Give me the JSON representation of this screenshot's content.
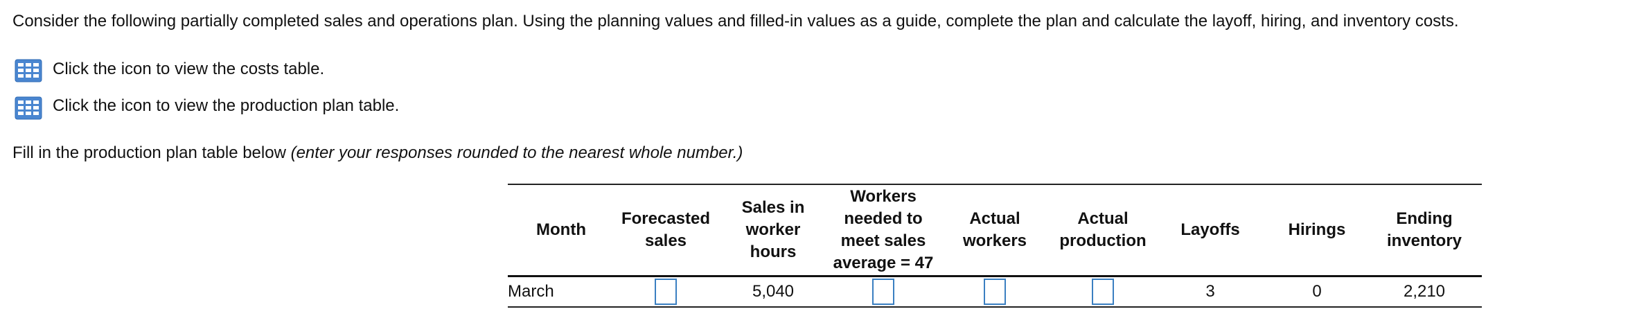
{
  "intro": "Consider the following partially completed sales and operations plan. Using the planning values and filled-in values as a guide, complete the plan and calculate the layoff, hiring, and inventory costs.",
  "links": [
    "Click the icon to view the costs table.",
    "Click the icon to view the production plan table."
  ],
  "instruction": {
    "text": "Fill in the production plan table below",
    "note": "(enter your responses rounded to the nearest whole number.)"
  },
  "table": {
    "headers": [
      [
        "Month"
      ],
      [
        "Forecasted",
        "sales"
      ],
      [
        "Sales in",
        "worker",
        "hours"
      ],
      [
        "Workers",
        "needed to",
        "meet sales",
        "average = 47"
      ],
      [
        "Actual",
        "workers"
      ],
      [
        "Actual",
        "production"
      ],
      [
        "Layoffs"
      ],
      [
        "Hirings"
      ],
      [
        "Ending",
        "inventory"
      ]
    ],
    "rows": [
      [
        "March",
        null,
        "5,040",
        null,
        null,
        null,
        "3",
        "0",
        "2,210"
      ]
    ]
  }
}
